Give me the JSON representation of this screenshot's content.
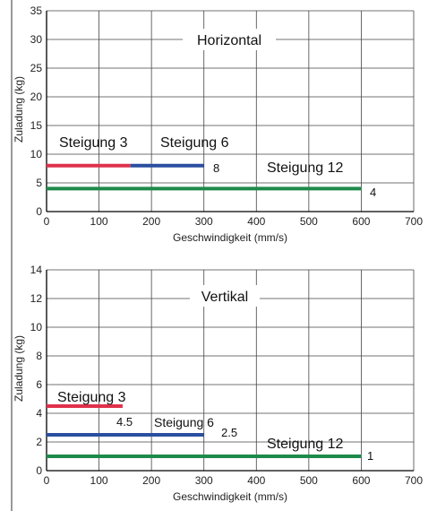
{
  "chart_data": [
    {
      "type": "line",
      "title": "Horizontal",
      "xlabel": "Geschwindigkeit (mm/s)",
      "ylabel": "Zuladung (kg)",
      "xlim": [
        0,
        700
      ],
      "ylim": [
        0,
        35
      ],
      "xticks": [
        0,
        100,
        200,
        300,
        400,
        500,
        600,
        700
      ],
      "yticks": [
        0,
        5,
        10,
        15,
        20,
        25,
        30,
        35
      ],
      "grid": true,
      "series": [
        {
          "name": "Steigung 3",
          "color": "#e0314b",
          "x": [
            0,
            160
          ],
          "y": [
            8,
            8
          ],
          "value_label": ""
        },
        {
          "name": "Steigung 6",
          "color": "#2a4fa0",
          "x": [
            160,
            300
          ],
          "y": [
            8,
            8
          ],
          "value_label": "8"
        },
        {
          "name": "Steigung 12",
          "color": "#1e8a4a",
          "x": [
            0,
            600
          ],
          "y": [
            4,
            4
          ],
          "value_label": "4"
        }
      ]
    },
    {
      "type": "line",
      "title": "Vertikal",
      "xlabel": "Geschwindigkeit (mm/s)",
      "ylabel": "Zuladung (kg)",
      "xlim": [
        0,
        700
      ],
      "ylim": [
        0,
        14
      ],
      "xticks": [
        0,
        100,
        200,
        300,
        400,
        500,
        600,
        700
      ],
      "yticks": [
        0,
        2,
        4,
        6,
        8,
        10,
        12,
        14
      ],
      "grid": true,
      "series": [
        {
          "name": "Steigung 3",
          "color": "#e0314b",
          "x": [
            0,
            145
          ],
          "y": [
            4.5,
            4.5
          ],
          "value_label": "4.5"
        },
        {
          "name": "Steigung 6",
          "color": "#2a4fa0",
          "x": [
            0,
            300
          ],
          "y": [
            2.5,
            2.5
          ],
          "value_label": "2.5"
        },
        {
          "name": "Steigung 12",
          "color": "#1e8a4a",
          "x": [
            0,
            600
          ],
          "y": [
            1,
            1
          ],
          "value_label": "1"
        }
      ]
    }
  ]
}
